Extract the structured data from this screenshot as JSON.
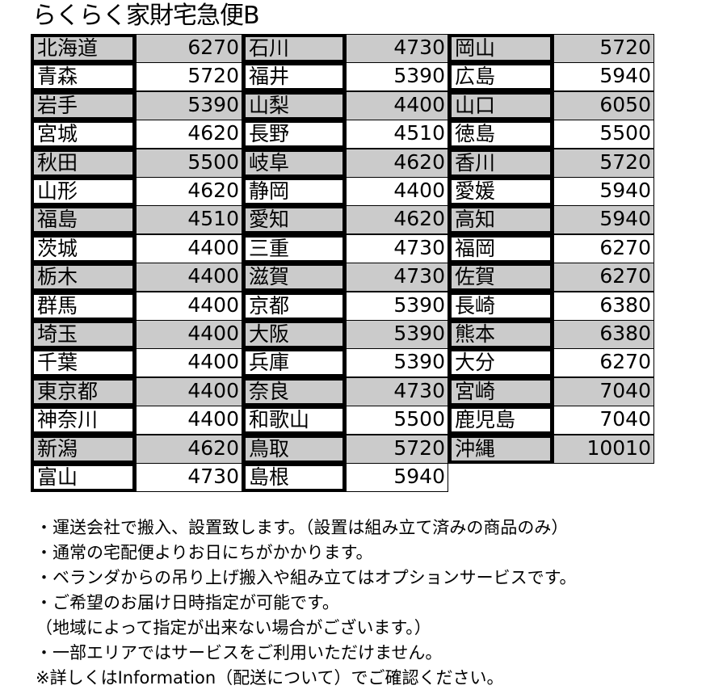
{
  "title": "らくらく家財宅急便B",
  "colors": {
    "shaded_row": "#cbcbcb",
    "plain_row": "#ffffff"
  },
  "columns": [
    [
      {
        "pref": "北海道",
        "price": "6270"
      },
      {
        "pref": "青森",
        "price": "5720"
      },
      {
        "pref": "岩手",
        "price": "5390"
      },
      {
        "pref": "宮城",
        "price": "4620"
      },
      {
        "pref": "秋田",
        "price": "5500"
      },
      {
        "pref": "山形",
        "price": "4620"
      },
      {
        "pref": "福島",
        "price": "4510"
      },
      {
        "pref": "茨城",
        "price": "4400"
      },
      {
        "pref": "栃木",
        "price": "4400"
      },
      {
        "pref": "群馬",
        "price": "4400"
      },
      {
        "pref": "埼玉",
        "price": "4400"
      },
      {
        "pref": "千葉",
        "price": "4400"
      },
      {
        "pref": "東京都",
        "price": "4400"
      },
      {
        "pref": "神奈川",
        "price": "4400"
      },
      {
        "pref": "新潟",
        "price": "4620"
      },
      {
        "pref": "富山",
        "price": "4730"
      }
    ],
    [
      {
        "pref": "石川",
        "price": "4730"
      },
      {
        "pref": "福井",
        "price": "5390"
      },
      {
        "pref": "山梨",
        "price": "4400"
      },
      {
        "pref": "長野",
        "price": "4510"
      },
      {
        "pref": "岐阜",
        "price": "4620"
      },
      {
        "pref": "静岡",
        "price": "4400"
      },
      {
        "pref": "愛知",
        "price": "4620"
      },
      {
        "pref": "三重",
        "price": "4730"
      },
      {
        "pref": "滋賀",
        "price": "4730"
      },
      {
        "pref": "京都",
        "price": "5390"
      },
      {
        "pref": "大阪",
        "price": "5390"
      },
      {
        "pref": "兵庫",
        "price": "5390"
      },
      {
        "pref": "奈良",
        "price": "4730"
      },
      {
        "pref": "和歌山",
        "price": "5500"
      },
      {
        "pref": "鳥取",
        "price": "5720"
      },
      {
        "pref": "島根",
        "price": "5940"
      }
    ],
    [
      {
        "pref": "岡山",
        "price": "5720"
      },
      {
        "pref": "広島",
        "price": "5940"
      },
      {
        "pref": "山口",
        "price": "6050"
      },
      {
        "pref": "徳島",
        "price": "5500"
      },
      {
        "pref": "香川",
        "price": "5720"
      },
      {
        "pref": "愛媛",
        "price": "5940"
      },
      {
        "pref": "高知",
        "price": "5940"
      },
      {
        "pref": "福岡",
        "price": "6270"
      },
      {
        "pref": "佐賀",
        "price": "6270"
      },
      {
        "pref": "長崎",
        "price": "6380"
      },
      {
        "pref": "熊本",
        "price": "6380"
      },
      {
        "pref": "大分",
        "price": "6270"
      },
      {
        "pref": "宮崎",
        "price": "7040"
      },
      {
        "pref": "鹿児島",
        "price": "7040"
      },
      {
        "pref": "沖縄",
        "price": "10010"
      }
    ]
  ],
  "notes": [
    "・運送会社で搬入、設置致します。（設置は組み立て済みの商品のみ）",
    "・通常の宅配便よりお日にちがかかります。",
    "・ベランダからの吊り上げ搬入や組み立てはオプションサービスです。",
    "・ご希望のお届け日時指定が可能です。",
    "（地域によって指定が出来ない場合がございます。）",
    "・一部エリアではサービスをご利用いただけません。",
    "※詳しくはInformation（配送について）でご確認ください。"
  ]
}
